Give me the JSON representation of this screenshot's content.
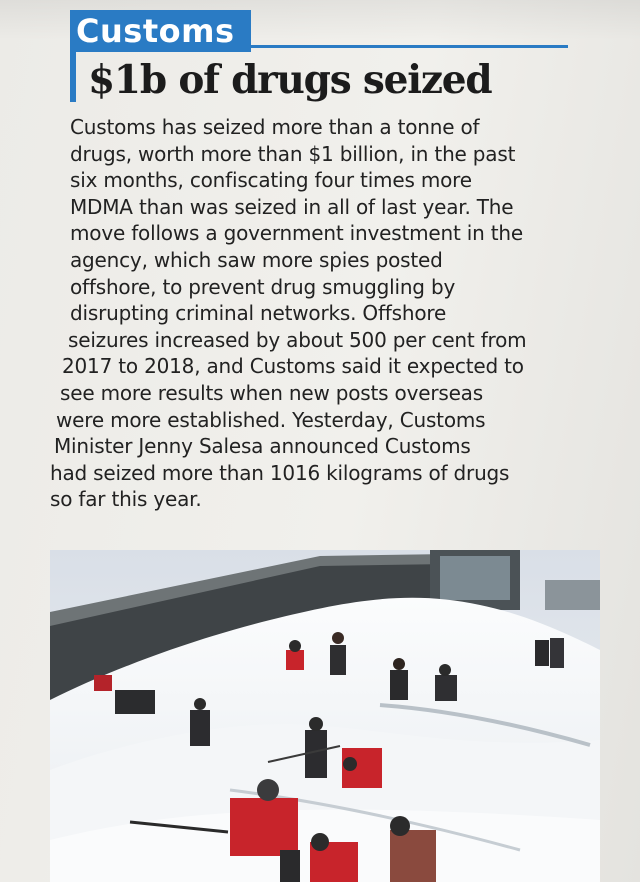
{
  "article": {
    "section": "Customs",
    "headline": "$1b of drugs seized",
    "body_lines": [
      "Customs has seized more than a tonne of",
      "drugs, worth more than $1 billion, in the past",
      "six months, confiscating four times more",
      "MDMA than was seized in all of last year. The",
      "move follows a government investment in the",
      "agency, which saw more spies posted",
      "offshore, to prevent drug smuggling by",
      "disrupting criminal networks. Offshore",
      "seizures increased by about 500 per cent from",
      "2017 to 2018, and Customs said it expected to",
      "see more results when new posts overseas",
      "were more established. Yesterday, Customs",
      "Minister Jenny Salesa announced Customs",
      "had seized more than 1016 kilograms of drugs",
      "so far this year."
    ]
  },
  "colors": {
    "accent": "#2a7bc4",
    "text": "#222222",
    "paper": "#eeede9"
  },
  "photo": {
    "icon": "snow-shovelling-photo"
  }
}
